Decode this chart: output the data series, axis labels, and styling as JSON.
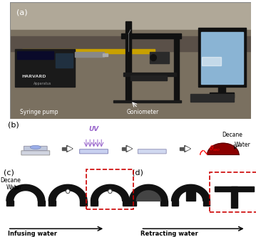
{
  "panel_a_label": "(a)",
  "panel_b_label": "(b)",
  "panel_c_label": "(c)",
  "panel_d_label": "(d)",
  "syringe_pump_label": "Syringe pump",
  "goniometer_label": "Goniometer",
  "uv_label": "UV",
  "decane_label": "Decane",
  "water_label": "Water",
  "infusing_label": "Infusing water",
  "retracting_label": "Retracting water",
  "bg_color": "#ffffff",
  "uv_arrow_color": "#9966cc",
  "black_shape": "#111111",
  "dark_red": "#8B0000",
  "red_dashed": "#cc0000",
  "yellow_line": "#c8a000",
  "fig_width": 3.59,
  "fig_height": 3.33,
  "dpi": 100
}
